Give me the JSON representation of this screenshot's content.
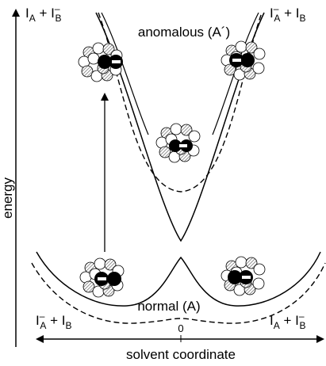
{
  "labels": {
    "y_axis": "energy",
    "x_axis": "solvent coordinate",
    "x_zero": "0",
    "upper_state": "anomalous (A´)",
    "lower_state": "normal (A)",
    "top_left": {
      "a": "I",
      "a_sub": "A",
      "plus": " + I",
      "b_sup": "–",
      "b_sub": "B"
    },
    "top_right": {
      "a": "I",
      "a_sup": "–",
      "a_sub": "A",
      "plus": " + I",
      "b_sub": "B"
    },
    "bottom_left": {
      "a": "I",
      "a_sup": "–",
      "a_sub": "A",
      "plus": " + I",
      "b_sub": "B"
    },
    "bottom_right": {
      "a": "I",
      "a_sub": "A",
      "plus": " + I",
      "b_sup": "–",
      "b_sub": "B"
    }
  },
  "clusters": [
    {
      "name": "cluster-top-left",
      "charge": "–"
    },
    {
      "name": "cluster-top-right",
      "charge": "–"
    },
    {
      "name": "cluster-middle",
      "charge": "–"
    },
    {
      "name": "cluster-bottom-left",
      "charge": "–"
    },
    {
      "name": "cluster-bottom-right",
      "charge": "–"
    }
  ]
}
